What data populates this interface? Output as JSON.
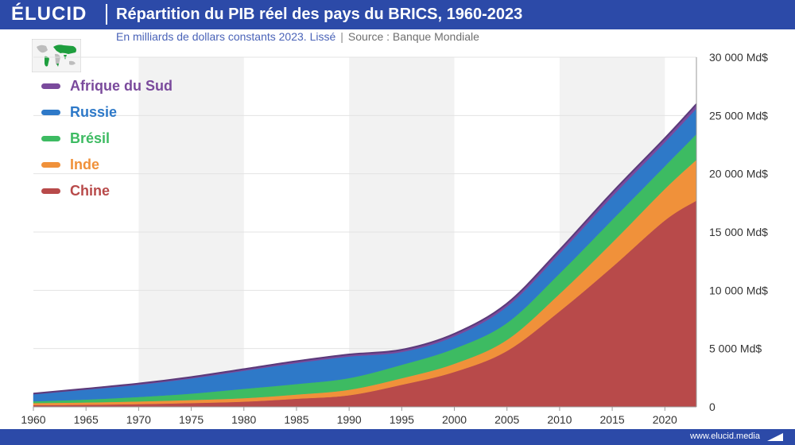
{
  "header": {
    "brand": "ÉLUCID",
    "title": "Répartition du PIB réel des pays du BRICS, 1960-2023"
  },
  "subtitle": {
    "text": "En milliards de dollars constants 2023. Lissé",
    "separator": "|",
    "source": "Source : Banque Mondiale"
  },
  "footer": {
    "url": "www.elucid.media"
  },
  "chart_data": {
    "type": "area",
    "stacked": true,
    "title": "Répartition du PIB réel des pays du BRICS, 1960-2023",
    "subtitle": "En milliards de dollars constants 2023. Lissé",
    "source": "Source : Banque Mondiale",
    "xlim": [
      1960,
      2023
    ],
    "ylim": [
      0,
      30000
    ],
    "x_ticks": [
      "1960",
      "1965",
      "1970",
      "1975",
      "1980",
      "1985",
      "1990",
      "1995",
      "2000",
      "2005",
      "2010",
      "2015",
      "2020"
    ],
    "y_ticks": [
      "0",
      "5 000 Md$",
      "10 000 Md$",
      "15 000 Md$",
      "20 000 Md$",
      "25 000 Md$",
      "30 000 Md$"
    ],
    "y_axis_position": "right",
    "legend_position": "top-left",
    "grid": true,
    "x": [
      1960,
      1965,
      1970,
      1975,
      1980,
      1985,
      1990,
      1995,
      2000,
      2005,
      2010,
      2015,
      2020,
      2023
    ],
    "series": [
      {
        "name": "Chine",
        "color": "#b84a4a",
        "values": [
          150,
          180,
          240,
          330,
          450,
          700,
          1000,
          1900,
          3000,
          4800,
          8200,
          12000,
          16000,
          17700
        ]
      },
      {
        "name": "Inde",
        "color": "#f0913a",
        "values": [
          180,
          200,
          230,
          260,
          300,
          360,
          470,
          560,
          700,
          950,
          1500,
          2100,
          2700,
          3500
        ]
      },
      {
        "name": "Brésil",
        "color": "#3dbb62",
        "values": [
          150,
          250,
          380,
          550,
          800,
          900,
          1000,
          1150,
          1300,
          1450,
          1750,
          1950,
          1950,
          2200
        ]
      },
      {
        "name": "Russie",
        "color": "#2e79c8",
        "values": [
          600,
          850,
          1050,
          1300,
          1550,
          1800,
          1850,
          1100,
          1050,
          1400,
          1700,
          2000,
          2050,
          2200
        ]
      },
      {
        "name": "Afrique du Sud",
        "color": "#7a4a9c",
        "values": [
          60,
          80,
          100,
          120,
          140,
          160,
          180,
          190,
          220,
          270,
          320,
          350,
          350,
          380
        ]
      }
    ]
  }
}
